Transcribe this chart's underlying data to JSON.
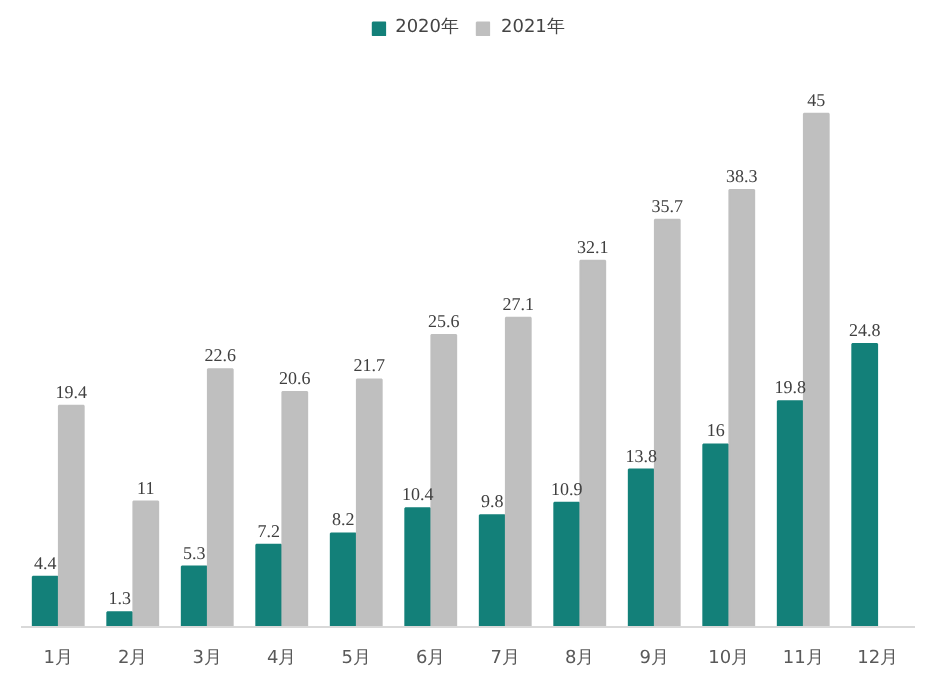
{
  "chart_data": {
    "type": "bar",
    "categories": [
      "1月",
      "2月",
      "3月",
      "4月",
      "5月",
      "6月",
      "7月",
      "8月",
      "9月",
      "10月",
      "11月",
      "12月"
    ],
    "series": [
      {
        "name": "2020年",
        "color": "#138079",
        "values": [
          4.4,
          1.3,
          5.3,
          7.2,
          8.2,
          10.4,
          9.8,
          10.9,
          13.8,
          16,
          19.8,
          24.8
        ]
      },
      {
        "name": "2021年",
        "color": "#bfbfbf",
        "values": [
          19.4,
          11,
          22.6,
          20.6,
          21.7,
          25.6,
          27.1,
          32.1,
          35.7,
          38.3,
          45,
          null
        ]
      }
    ],
    "data_labels": true,
    "legend": "top",
    "grid": false
  }
}
